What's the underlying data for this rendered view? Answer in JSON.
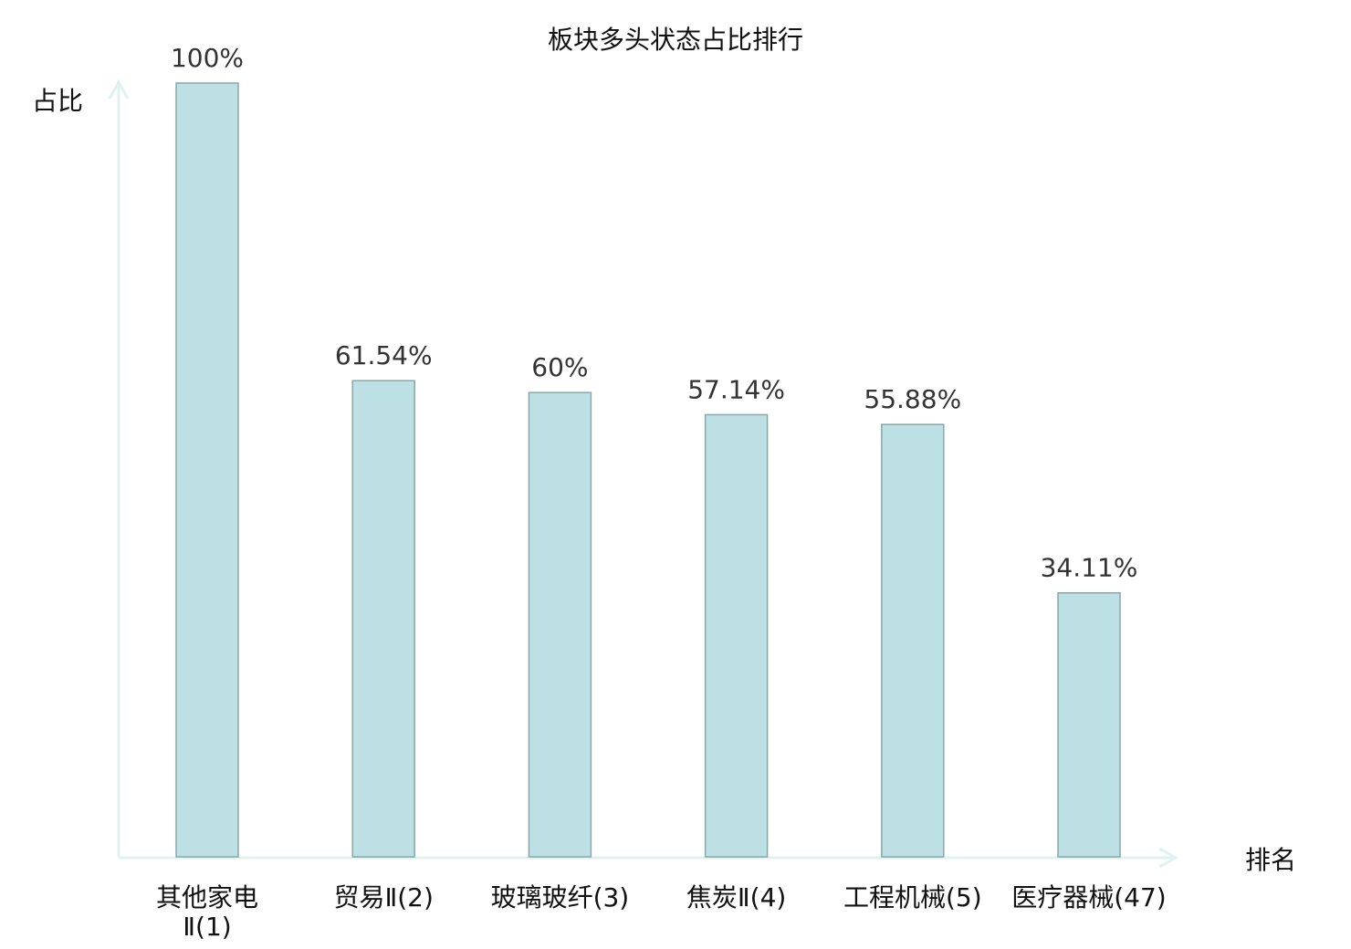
{
  "chart_data": {
    "type": "bar",
    "title": "板块多头状态占比排行",
    "xlabel": "排名",
    "ylabel": "占比",
    "categories": [
      "其他家电Ⅱ(1)",
      "贸易Ⅱ(2)",
      "玻璃玻纤(3)",
      "焦炭Ⅱ(4)",
      "工程机械(5)",
      "医疗器械(47)"
    ],
    "values": [
      100,
      61.54,
      60,
      57.14,
      55.88,
      34.11
    ],
    "value_labels": [
      "100%",
      "61.54%",
      "60%",
      "57.14%",
      "55.88%",
      "34.11%"
    ],
    "ylim": [
      0,
      100
    ],
    "grid": false,
    "highlight_index": 5,
    "colors": {
      "bar_fill": "#bce0e3",
      "bar_stroke": "#8aa8a8",
      "axis": "#dff2ef",
      "highlight_label": "#e8141b",
      "label": "#111111"
    }
  }
}
